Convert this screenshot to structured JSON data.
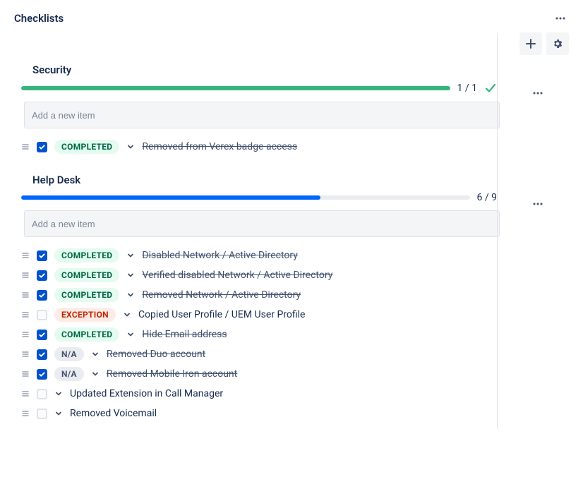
{
  "colors": {
    "text": "#172b4d",
    "muted": "#42526e",
    "green": "#36b37e",
    "blue": "#0065ff",
    "checkboxBlue": "#0052cc",
    "trackBg": "#ebecf0",
    "completedBadgeBg": "#e3fcef",
    "completedBadgeFg": "#006644",
    "exceptionBadgeBg": "#ffebe6",
    "exceptionBadgeFg": "#bf2600",
    "naBadgeBg": "#ebecf0",
    "naBadgeFg": "#42526e"
  },
  "header": {
    "title": "Checklists"
  },
  "input": {
    "placeholder": "Add a new item"
  },
  "checklists": [
    {
      "title": "Security",
      "progress": {
        "completed": 1,
        "total": 1,
        "label": "1 / 1",
        "pct": 100,
        "barColor": "#36b37e",
        "showCheck": true
      },
      "items": [
        {
          "checked": true,
          "status": "COMPLETED",
          "statusType": "completed",
          "text": "Removed from Verex badge access",
          "struck": true
        }
      ]
    },
    {
      "title": "Help Desk",
      "progress": {
        "completed": 6,
        "total": 9,
        "label": "6 / 9",
        "pct": 66.7,
        "barColor": "#0065ff",
        "showCheck": false
      },
      "items": [
        {
          "checked": true,
          "status": "COMPLETED",
          "statusType": "completed",
          "text": "Disabled Network / Active Directory",
          "struck": true
        },
        {
          "checked": true,
          "status": "COMPLETED",
          "statusType": "completed",
          "text": "Verified disabled Network / Active Directory",
          "struck": true
        },
        {
          "checked": true,
          "status": "COMPLETED",
          "statusType": "completed",
          "text": "Removed Network / Active Directory",
          "struck": true
        },
        {
          "checked": false,
          "status": "EXCEPTION",
          "statusType": "exception",
          "text": "Copied User Profile / UEM User Profile",
          "struck": false
        },
        {
          "checked": true,
          "status": "COMPLETED",
          "statusType": "completed",
          "text": "Hide Email address",
          "struck": true
        },
        {
          "checked": true,
          "status": "N/A",
          "statusType": "na",
          "text": "Removed Duo account",
          "struck": true
        },
        {
          "checked": true,
          "status": "N/A",
          "statusType": "na",
          "text": "Removed Mobile Iron account",
          "struck": true
        },
        {
          "checked": false,
          "status": null,
          "statusType": null,
          "text": "Updated Extension in Call Manager",
          "struck": false
        },
        {
          "checked": false,
          "status": null,
          "statusType": null,
          "text": "Removed Voicemail",
          "struck": false
        }
      ]
    }
  ]
}
